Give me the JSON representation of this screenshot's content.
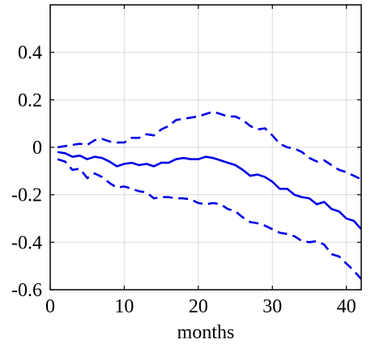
{
  "chart_data": {
    "type": "line",
    "title": "",
    "xlabel": "months",
    "ylabel": "",
    "xlim": [
      0,
      42
    ],
    "ylim": [
      -0.6,
      0.6
    ],
    "xticks": [
      0,
      10,
      20,
      30,
      40
    ],
    "yticks": [
      -0.6,
      -0.4,
      -0.2,
      0,
      0.2,
      0.4
    ],
    "xtick_labels": [
      "0",
      "10",
      "20",
      "30",
      "40"
    ],
    "ytick_labels": [
      "-0.6",
      "-0.4",
      "-0.2",
      "0",
      "0.2",
      "0.4"
    ],
    "grid": true,
    "x": [
      1,
      2,
      3,
      4,
      5,
      6,
      7,
      8,
      9,
      10,
      11,
      12,
      13,
      14,
      15,
      16,
      17,
      18,
      19,
      20,
      21,
      22,
      23,
      24,
      25,
      26,
      27,
      28,
      29,
      30,
      31,
      32,
      33,
      34,
      35,
      36,
      37,
      38,
      39,
      40,
      41,
      42
    ],
    "series": [
      {
        "role": "estimate",
        "style": "solid",
        "color": "#0000e6",
        "values": [
          -0.02,
          -0.025,
          -0.04,
          -0.035,
          -0.05,
          -0.04,
          -0.045,
          -0.06,
          -0.08,
          -0.07,
          -0.065,
          -0.075,
          -0.07,
          -0.08,
          -0.065,
          -0.065,
          -0.05,
          -0.045,
          -0.05,
          -0.05,
          -0.04,
          -0.045,
          -0.055,
          -0.065,
          -0.075,
          -0.095,
          -0.12,
          -0.115,
          -0.125,
          -0.145,
          -0.175,
          -0.175,
          -0.2,
          -0.21,
          -0.215,
          -0.24,
          -0.23,
          -0.26,
          -0.27,
          -0.3,
          -0.31,
          -0.345
        ]
      },
      {
        "role": "upper-band",
        "style": "dashed",
        "color": "#0000e6",
        "values": [
          0.0,
          0.005,
          0.01,
          0.015,
          0.01,
          0.03,
          0.035,
          0.025,
          0.02,
          0.02,
          0.04,
          0.04,
          0.055,
          0.05,
          0.075,
          0.09,
          0.115,
          0.12,
          0.125,
          0.13,
          0.14,
          0.15,
          0.14,
          0.13,
          0.13,
          0.115,
          0.09,
          0.075,
          0.08,
          0.05,
          0.015,
          0.0,
          -0.005,
          -0.02,
          -0.045,
          -0.06,
          -0.055,
          -0.075,
          -0.095,
          -0.105,
          -0.12,
          -0.135
        ]
      },
      {
        "role": "lower-band",
        "style": "dashed",
        "color": "#0000e6",
        "values": [
          -0.05,
          -0.06,
          -0.095,
          -0.09,
          -0.13,
          -0.11,
          -0.125,
          -0.15,
          -0.17,
          -0.165,
          -0.175,
          -0.185,
          -0.19,
          -0.215,
          -0.21,
          -0.21,
          -0.215,
          -0.215,
          -0.22,
          -0.235,
          -0.24,
          -0.235,
          -0.24,
          -0.26,
          -0.27,
          -0.295,
          -0.315,
          -0.32,
          -0.33,
          -0.345,
          -0.36,
          -0.365,
          -0.375,
          -0.395,
          -0.4,
          -0.395,
          -0.41,
          -0.45,
          -0.46,
          -0.49,
          -0.52,
          -0.555
        ]
      }
    ]
  }
}
